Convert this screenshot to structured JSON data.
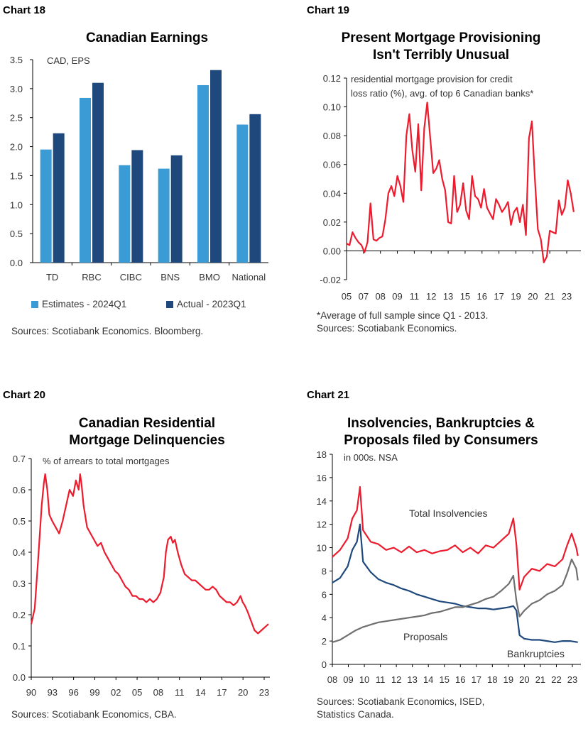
{
  "colors": {
    "light_blue": "#3a9bd5",
    "dark_blue": "#1f497d",
    "red": "#ec1c2e",
    "gray": "#6f6f6f",
    "axis": "#000000"
  },
  "panels": [
    {
      "label": "Chart 18",
      "title_lines": [
        "Canadian Earnings"
      ],
      "source_lines": [
        "Sources: Scotiabank Economics. Bloomberg."
      ]
    },
    {
      "label": "Chart 19",
      "title_lines": [
        "Present Mortgage Provisioning",
        "Isn't Terribly Unusual"
      ],
      "source_lines": [
        "*Average of full sample since Q1 - 2013.",
        "Sources: Scotiabank Economics."
      ]
    },
    {
      "label": "Chart 20",
      "title_lines": [
        "Canadian Residential",
        "Mortgage Delinquencies"
      ],
      "source_lines": [
        "Sources: Scotiabank Economics, CBA."
      ]
    },
    {
      "label": "Chart 21",
      "title_lines": [
        "Insolvencies, Bankruptcies &",
        "Proposals filed by Consumers"
      ],
      "source_lines": [
        "Sources: Scotiabank Economics, ISED,",
        "Statistics Canada."
      ]
    }
  ],
  "chart_data": [
    {
      "type": "bar",
      "title": "Canadian Earnings",
      "annotation": "CAD, EPS",
      "categories": [
        "TD",
        "RBC",
        "CIBC",
        "BNS",
        "BMO",
        "National"
      ],
      "series": [
        {
          "name": "Estimates - 2024Q1",
          "values": [
            1.95,
            2.84,
            1.68,
            1.62,
            3.06,
            2.38
          ]
        },
        {
          "name": "Actual - 2023Q1",
          "values": [
            2.23,
            3.1,
            1.94,
            1.85,
            3.32,
            2.56
          ]
        }
      ],
      "ylim": [
        0,
        3.5
      ],
      "yticks": [
        "0.0",
        "0.5",
        "1.0",
        "1.5",
        "2.0",
        "2.5",
        "3.0",
        "3.5"
      ],
      "legend_position": "bottom"
    },
    {
      "type": "line",
      "title": "Present Mortgage Provisioning Isn't Terribly Unusual",
      "annotation": [
        "residential mortgage provision for credit",
        "loss ratio (%), avg. of top 6 Canadian banks*"
      ],
      "xtick_labels": [
        "05",
        "07",
        "08",
        "09",
        "11",
        "12",
        "13",
        "15",
        "16",
        "17",
        "19",
        "20",
        "21",
        "23"
      ],
      "ylim": [
        -0.02,
        0.12
      ],
      "yticks": [
        "-0.02",
        "0.00",
        "0.02",
        "0.04",
        "0.06",
        "0.08",
        "0.10",
        "0.12"
      ],
      "x_range": [
        2005,
        2024.6
      ],
      "series": [
        {
          "x": [
            2005.0,
            2005.25,
            2005.5,
            2005.75,
            2006.0,
            2006.25,
            2006.5,
            2006.75,
            2007.0,
            2007.25,
            2007.5,
            2007.75,
            2008.0,
            2008.25,
            2008.5,
            2008.75,
            2009.0,
            2009.25,
            2009.5,
            2009.75,
            2010.0,
            2010.25,
            2010.5,
            2010.75,
            2011.0,
            2011.25,
            2011.5,
            2011.75,
            2012.0,
            2012.25,
            2012.5,
            2012.75,
            2013.0,
            2013.25,
            2013.5,
            2013.75,
            2014.0,
            2014.25,
            2014.5,
            2014.75,
            2015.0,
            2015.25,
            2015.5,
            2015.75,
            2016.0,
            2016.25,
            2016.5,
            2016.75,
            2017.0,
            2017.25,
            2017.5,
            2017.75,
            2018.0,
            2018.25,
            2018.5,
            2018.75,
            2019.0,
            2019.25,
            2019.5,
            2019.75,
            2020.0,
            2020.25,
            2020.5,
            2020.75,
            2021.0,
            2021.25,
            2021.5,
            2021.75,
            2022.0,
            2022.25,
            2022.5,
            2022.75,
            2023.0,
            2023.25,
            2023.5,
            2023.75,
            2024.0
          ],
          "values": [
            0.005,
            0.004,
            0.013,
            0.009,
            0.006,
            0.004,
            -0.001,
            0.006,
            0.033,
            0.008,
            0.007,
            0.009,
            0.01,
            0.022,
            0.04,
            0.045,
            0.038,
            0.052,
            0.045,
            0.034,
            0.08,
            0.095,
            0.07,
            0.055,
            0.088,
            0.042,
            0.085,
            0.103,
            0.078,
            0.054,
            0.057,
            0.063,
            0.05,
            0.042,
            0.02,
            0.019,
            0.052,
            0.027,
            0.032,
            0.047,
            0.028,
            0.022,
            0.052,
            0.038,
            0.036,
            0.03,
            0.043,
            0.03,
            0.026,
            0.022,
            0.036,
            0.032,
            0.027,
            0.03,
            0.034,
            0.018,
            0.027,
            0.03,
            0.02,
            0.032,
            0.011,
            0.078,
            0.09,
            0.05,
            0.015,
            0.008,
            -0.008,
            -0.004,
            0.014,
            0.013,
            0.012,
            0.035,
            0.025,
            0.03,
            0.049,
            0.04,
            0.027
          ]
        }
      ]
    },
    {
      "type": "line",
      "title": "Canadian Residential Mortgage Delinquencies",
      "annotation": "% of arrears to total mortgages",
      "xtick_labels": [
        "90",
        "93",
        "96",
        "99",
        "02",
        "05",
        "08",
        "11",
        "14",
        "17",
        "20",
        "23"
      ],
      "ylim": [
        0.0,
        0.7
      ],
      "yticks": [
        "0.0",
        "0.1",
        "0.2",
        "0.3",
        "0.4",
        "0.5",
        "0.6",
        "0.7"
      ],
      "x_range": [
        1990,
        2024.2
      ],
      "series": [
        {
          "x": [
            1990.0,
            1990.5,
            1991.0,
            1991.5,
            1991.8,
            1992.0,
            1992.3,
            1992.6,
            1993.0,
            1993.5,
            1994.0,
            1994.5,
            1995.0,
            1995.5,
            1996.0,
            1996.4,
            1996.8,
            1997.0,
            1997.2,
            1997.5,
            1998.0,
            1998.5,
            1999.0,
            1999.5,
            2000.0,
            2000.5,
            2001.0,
            2001.5,
            2002.0,
            2002.5,
            2003.0,
            2003.5,
            2004.0,
            2004.5,
            2005.0,
            2005.5,
            2006.0,
            2006.5,
            2007.0,
            2007.5,
            2008.0,
            2008.5,
            2009.0,
            2009.3,
            2009.6,
            2010.0,
            2010.3,
            2010.6,
            2011.0,
            2011.5,
            2012.0,
            2012.5,
            2013.0,
            2013.5,
            2014.0,
            2014.5,
            2015.0,
            2015.5,
            2016.0,
            2016.5,
            2017.0,
            2017.5,
            2018.0,
            2018.5,
            2019.0,
            2019.5,
            2020.0,
            2020.3,
            2020.6,
            2021.0,
            2021.5,
            2022.0,
            2022.5,
            2023.0,
            2023.5,
            2024.0
          ],
          "values": [
            0.17,
            0.22,
            0.38,
            0.55,
            0.62,
            0.65,
            0.6,
            0.52,
            0.5,
            0.48,
            0.46,
            0.5,
            0.55,
            0.6,
            0.58,
            0.63,
            0.6,
            0.65,
            0.62,
            0.55,
            0.48,
            0.46,
            0.44,
            0.42,
            0.43,
            0.4,
            0.38,
            0.36,
            0.34,
            0.33,
            0.31,
            0.29,
            0.28,
            0.26,
            0.26,
            0.25,
            0.25,
            0.24,
            0.25,
            0.24,
            0.25,
            0.27,
            0.32,
            0.4,
            0.44,
            0.45,
            0.43,
            0.44,
            0.4,
            0.36,
            0.33,
            0.32,
            0.31,
            0.31,
            0.3,
            0.29,
            0.28,
            0.28,
            0.29,
            0.28,
            0.26,
            0.25,
            0.24,
            0.24,
            0.23,
            0.24,
            0.26,
            0.24,
            0.23,
            0.21,
            0.18,
            0.15,
            0.14,
            0.15,
            0.16,
            0.17
          ]
        }
      ]
    },
    {
      "type": "line",
      "title": "Insolvencies, Bankruptcies & Proposals filed by Consumers",
      "annotation": "in 000s. NSA",
      "xtick_labels": [
        "08",
        "09",
        "10",
        "11",
        "12",
        "13",
        "14",
        "15",
        "16",
        "17",
        "18",
        "19",
        "20",
        "21",
        "22",
        "23"
      ],
      "ylim": [
        0,
        18
      ],
      "yticks": [
        "0",
        "2",
        "4",
        "6",
        "8",
        "10",
        "12",
        "14",
        "16",
        "18"
      ],
      "x_range": [
        2008,
        2024.2
      ],
      "series": [
        {
          "name": "Total Insolvencies",
          "x": [
            2008.0,
            2008.5,
            2009.0,
            2009.3,
            2009.6,
            2009.8,
            2010.0,
            2010.5,
            2011.0,
            2011.5,
            2012.0,
            2012.5,
            2013.0,
            2013.5,
            2014.0,
            2014.5,
            2015.0,
            2015.5,
            2016.0,
            2016.5,
            2017.0,
            2017.5,
            2018.0,
            2018.5,
            2019.0,
            2019.5,
            2019.8,
            2020.0,
            2020.2,
            2020.5,
            2021.0,
            2021.5,
            2022.0,
            2022.5,
            2023.0,
            2023.3,
            2023.6,
            2023.9,
            2024.0
          ],
          "values": [
            9.2,
            9.8,
            10.8,
            12.5,
            13.2,
            15.2,
            11.5,
            10.5,
            10.3,
            9.8,
            10.0,
            9.6,
            10.1,
            9.6,
            9.8,
            9.5,
            9.7,
            9.8,
            10.2,
            9.6,
            10.0,
            9.5,
            10.2,
            10.0,
            10.6,
            11.2,
            12.5,
            10.2,
            6.4,
            7.5,
            8.2,
            8.0,
            8.6,
            8.4,
            9.0,
            10.2,
            11.2,
            10.0,
            9.3
          ]
        },
        {
          "name": "Bankruptcies",
          "x": [
            2008.0,
            2008.5,
            2009.0,
            2009.3,
            2009.6,
            2009.8,
            2010.0,
            2010.5,
            2011.0,
            2011.5,
            2012.0,
            2012.5,
            2013.0,
            2013.5,
            2014.0,
            2014.5,
            2015.0,
            2015.5,
            2016.0,
            2016.5,
            2017.0,
            2017.5,
            2018.0,
            2018.5,
            2019.0,
            2019.5,
            2019.8,
            2020.0,
            2020.2,
            2020.5,
            2021.0,
            2021.5,
            2022.0,
            2022.5,
            2023.0,
            2023.5,
            2024.0
          ],
          "values": [
            7.0,
            7.4,
            8.4,
            9.8,
            10.5,
            12.0,
            8.8,
            7.9,
            7.3,
            7.0,
            6.8,
            6.5,
            6.3,
            6.0,
            5.8,
            5.6,
            5.4,
            5.3,
            5.2,
            5.0,
            4.9,
            4.8,
            4.8,
            4.7,
            4.8,
            4.9,
            5.0,
            4.6,
            2.5,
            2.2,
            2.1,
            2.1,
            2.0,
            1.9,
            2.0,
            2.0,
            1.9
          ]
        },
        {
          "name": "Proposals",
          "x": [
            2008.0,
            2008.5,
            2009.0,
            2009.5,
            2010.0,
            2010.5,
            2011.0,
            2011.5,
            2012.0,
            2012.5,
            2013.0,
            2013.5,
            2014.0,
            2014.5,
            2015.0,
            2015.5,
            2016.0,
            2016.5,
            2017.0,
            2017.5,
            2018.0,
            2018.5,
            2019.0,
            2019.5,
            2019.8,
            2020.0,
            2020.2,
            2020.5,
            2021.0,
            2021.5,
            2022.0,
            2022.5,
            2023.0,
            2023.3,
            2023.6,
            2023.9,
            2024.0
          ],
          "values": [
            1.9,
            2.1,
            2.5,
            2.9,
            3.2,
            3.4,
            3.6,
            3.7,
            3.8,
            3.9,
            4.0,
            4.1,
            4.2,
            4.4,
            4.5,
            4.7,
            4.9,
            4.9,
            5.1,
            5.3,
            5.6,
            5.8,
            6.3,
            6.9,
            7.6,
            5.4,
            4.1,
            4.6,
            5.2,
            5.5,
            6.0,
            6.3,
            6.8,
            7.8,
            9.0,
            8.2,
            7.2
          ]
        }
      ],
      "series_labels": [
        "Total Insolvencies",
        "Proposals",
        "Bankruptcies"
      ]
    }
  ]
}
